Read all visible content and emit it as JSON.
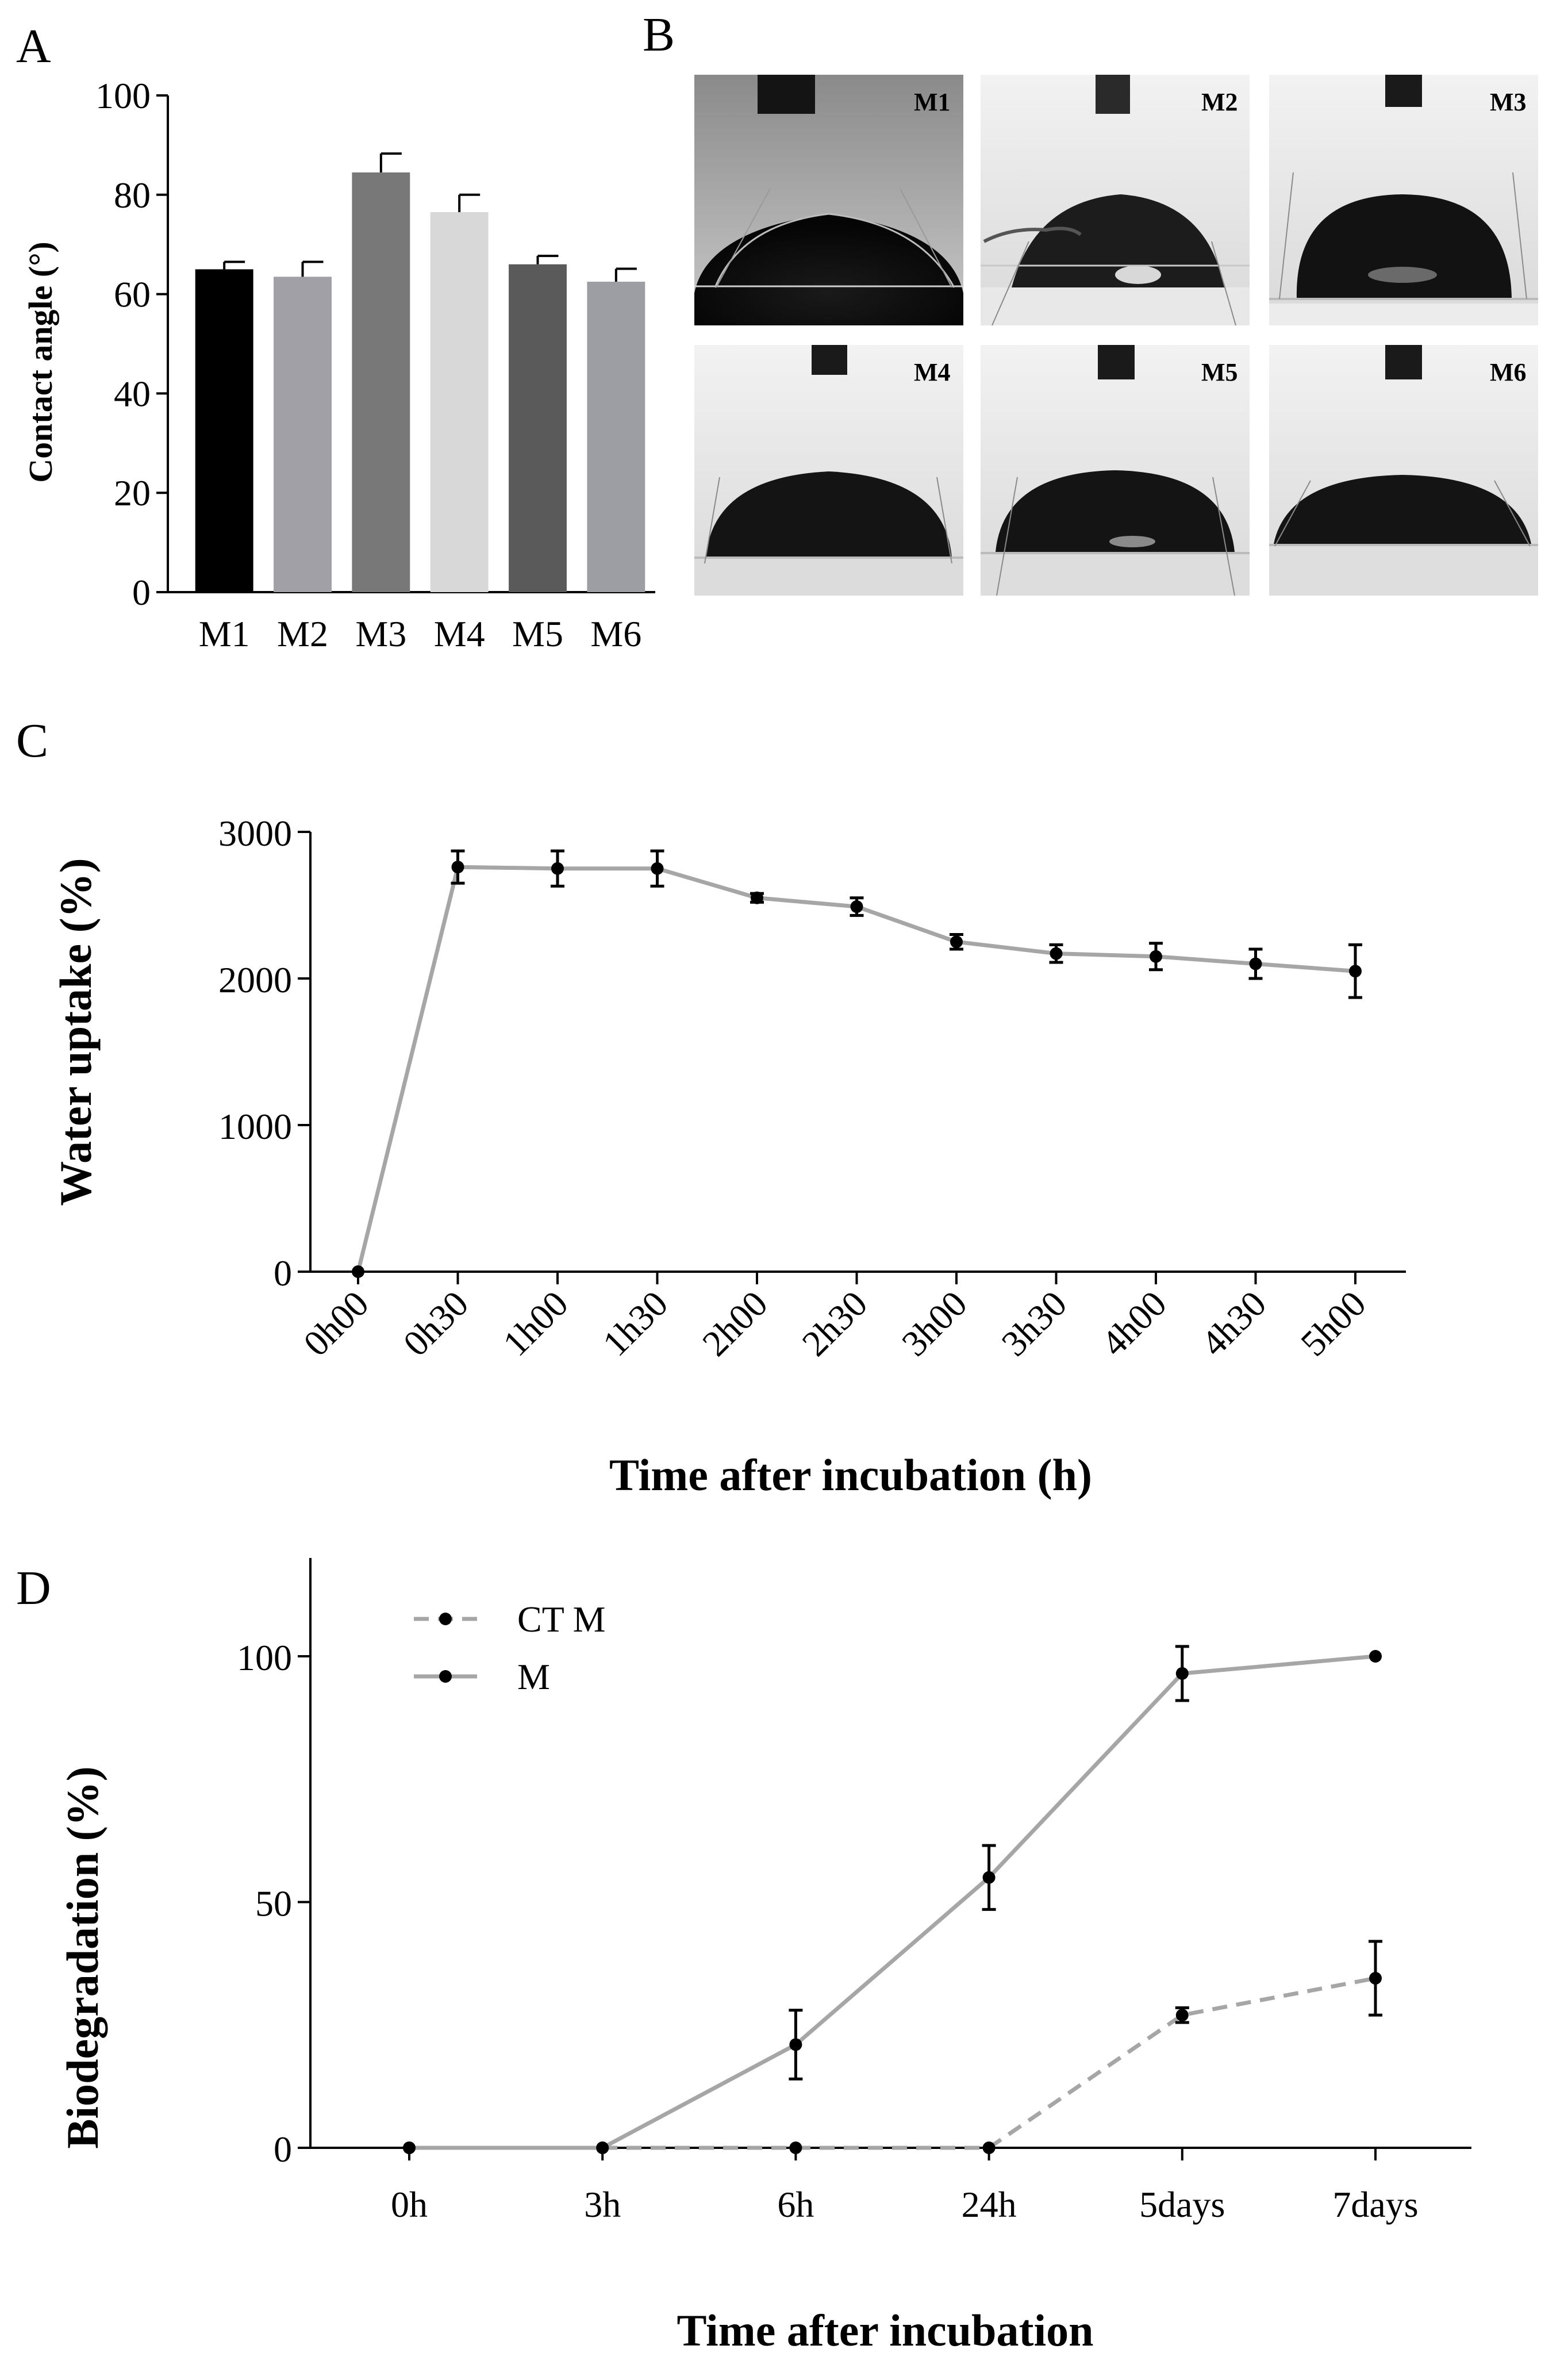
{
  "panel_letters": {
    "a": "A",
    "b": "B",
    "c": "C",
    "d": "D"
  },
  "colors": {
    "axis": "#000000",
    "line": "#a6a6a6",
    "marker": "#000000"
  },
  "photos": {
    "labels": [
      "M1",
      "M2",
      "M3",
      "M4",
      "M5",
      "M6"
    ]
  },
  "chart_data": [
    {
      "panel": "A",
      "type": "bar",
      "title": "",
      "xlabel": "",
      "ylabel": "Contact angle (°)",
      "ylim": [
        0,
        100
      ],
      "yticks": [
        "0",
        "20",
        "40",
        "60",
        "80",
        "100"
      ],
      "categories": [
        "M1",
        "M2",
        "M3",
        "M4",
        "M5",
        "M6"
      ],
      "values": [
        65,
        63.5,
        84.5,
        76.5,
        66,
        62.5
      ],
      "errors": [
        1.5,
        3,
        3.8,
        3.5,
        1.7,
        2.6
      ],
      "bar_colors": [
        "#000000",
        "#a0a0a6",
        "#787878",
        "#d8d8d8",
        "#5a5a5a",
        "#9d9da4"
      ]
    },
    {
      "panel": "C",
      "type": "line",
      "title": "",
      "xlabel": "Time after incubation (h)",
      "ylabel": "Water uptake (%)",
      "ylim": [
        0,
        3000
      ],
      "yticks": [
        "0",
        "1000",
        "2000",
        "3000"
      ],
      "x": [
        "0h00",
        "0h30",
        "1h00",
        "1h30",
        "2h00",
        "2h30",
        "3h00",
        "3h30",
        "4h00",
        "4h30",
        "5h00"
      ],
      "series": [
        {
          "name": "Water uptake",
          "values": [
            0,
            2760,
            2750,
            2750,
            2550,
            2490,
            2250,
            2170,
            2150,
            2100,
            2050
          ],
          "errors": [
            0,
            110,
            120,
            120,
            30,
            60,
            50,
            60,
            90,
            100,
            180
          ]
        }
      ]
    },
    {
      "panel": "D",
      "type": "line",
      "title": "",
      "xlabel": "Time after incubation",
      "ylabel": "Biodegradation (%)",
      "ylim": [
        0,
        120
      ],
      "yticks": [
        "0",
        "50",
        "100"
      ],
      "x": [
        "0h",
        "3h",
        "6h",
        "24h",
        "5days",
        "7days"
      ],
      "legend": [
        "CT M",
        "M"
      ],
      "legend_position": "top-left",
      "series": [
        {
          "name": "CT M",
          "style": "dashed",
          "values": [
            0,
            0,
            0,
            0,
            27,
            34.5
          ],
          "errors": [
            0,
            0,
            0,
            0,
            1.5,
            7.5
          ]
        },
        {
          "name": "M",
          "style": "solid",
          "values": [
            0,
            0,
            21,
            55,
            96.5,
            100
          ],
          "errors": [
            0,
            0,
            7,
            6.5,
            5.5,
            0
          ]
        }
      ]
    }
  ]
}
